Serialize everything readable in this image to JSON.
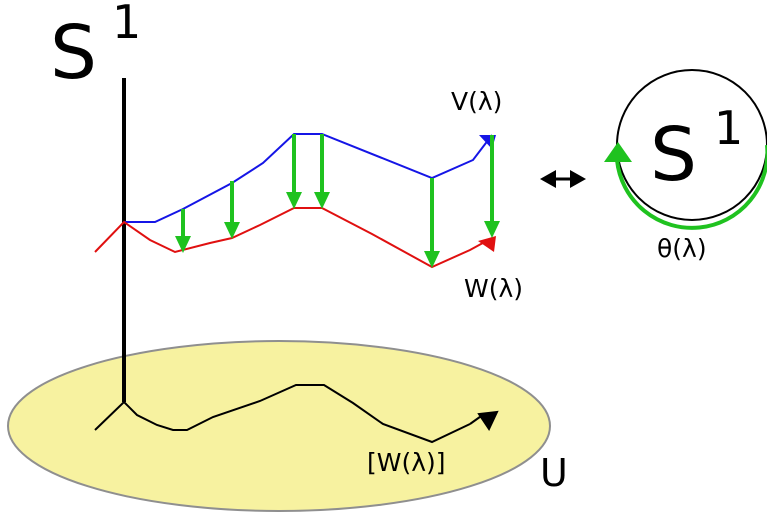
{
  "labels": {
    "s1_left": "S",
    "s1_left_exp": "1",
    "v_lambda": "V(λ)",
    "w_lambda": "W(λ)",
    "bracket_w_lambda": "[W(λ)]",
    "u": "U",
    "s1_circle": "S",
    "s1_circle_exp": "1",
    "theta_lambda": "θ(λ)"
  },
  "colors": {
    "upper_curve": "#1515e6",
    "lower_curve": "#e01010",
    "vectors": "#1fc21f",
    "plane_fill": "#f7f2a0",
    "plane_stroke": "#8f8f8f",
    "ink": "#000000"
  },
  "icons": {
    "equivalence": "double-headed-arrow",
    "path_end": "arrowhead"
  }
}
